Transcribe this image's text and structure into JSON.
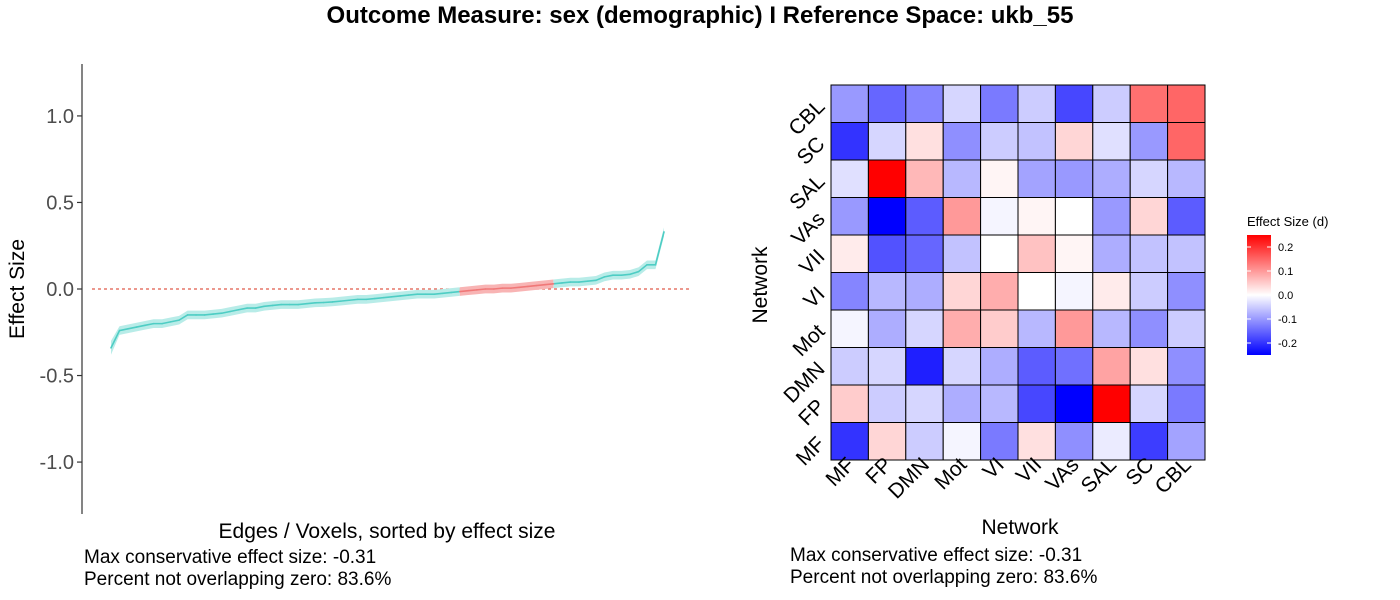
{
  "title": "Outcome Measure: sex (demographic)   I  Reference Space: ukb_55",
  "colors": {
    "series": "#4ecdc4",
    "ci_band": "#b8ece8",
    "ci_band_overlap": "#f8b4b4",
    "overlap_line": "#f07878",
    "zero_line": "#e05a4a",
    "high": "#ff0000",
    "mid": "#ffffff",
    "low": "#0000ff"
  },
  "chart_data": [
    {
      "type": "line",
      "xlabel": "Edges / Voxels, sorted by effect size",
      "ylabel": "Effect Size",
      "ylim": [
        -1.3,
        1.3
      ],
      "yticks": [
        -1.0,
        -0.5,
        0.0,
        0.5,
        1.0
      ],
      "ytick_labels": [
        "-1.0",
        "-0.5",
        "0.0",
        "0.5",
        "1.0"
      ],
      "zero_line": true,
      "grid": false,
      "ci_halfwidth": 0.025,
      "series": [
        {
          "values": [
            -0.34,
            -0.24,
            -0.23,
            -0.22,
            -0.21,
            -0.2,
            -0.2,
            -0.19,
            -0.18,
            -0.15,
            -0.15,
            -0.15,
            -0.145,
            -0.14,
            -0.13,
            -0.12,
            -0.11,
            -0.11,
            -0.1,
            -0.095,
            -0.09,
            -0.09,
            -0.09,
            -0.085,
            -0.08,
            -0.078,
            -0.075,
            -0.07,
            -0.065,
            -0.06,
            -0.06,
            -0.055,
            -0.05,
            -0.045,
            -0.04,
            -0.035,
            -0.03,
            -0.03,
            -0.03,
            -0.025,
            -0.02,
            -0.015,
            -0.01,
            -0.005,
            0.0,
            0.0,
            0.005,
            0.005,
            0.01,
            0.015,
            0.02,
            0.025,
            0.03,
            0.035,
            0.04,
            0.04,
            0.045,
            0.05,
            0.07,
            0.08,
            0.08,
            0.085,
            0.1,
            0.14,
            0.14,
            0.33
          ]
        }
      ],
      "overlap_zero_range": [
        41,
        52
      ],
      "annotations": [
        "Max conservative effect size: -0.31",
        "Percent not overlapping zero: 83.6%"
      ]
    },
    {
      "type": "heatmap",
      "xlabel": "Network",
      "ylabel": "Network",
      "x_labels": [
        "MF",
        "FP",
        "DMN",
        "Mot",
        "VI",
        "VII",
        "VAs",
        "SAL",
        "SC",
        "CBL"
      ],
      "y_labels": [
        "MF",
        "FP",
        "DMN",
        "Mot",
        "VI",
        "VII",
        "VAs",
        "SAL",
        "SC",
        "CBL"
      ],
      "values_top_to_bottom": [
        [
          -0.1,
          -0.15,
          -0.12,
          -0.04,
          -0.13,
          -0.05,
          -0.18,
          -0.05,
          0.14,
          0.15
        ],
        [
          -0.2,
          -0.04,
          0.03,
          -0.11,
          -0.05,
          -0.06,
          0.04,
          -0.03,
          -0.1,
          0.15
        ],
        [
          -0.03,
          0.26,
          0.07,
          -0.07,
          0.01,
          -0.09,
          -0.1,
          -0.08,
          -0.04,
          -0.07
        ],
        [
          -0.1,
          -0.26,
          -0.16,
          0.1,
          -0.01,
          0.01,
          0.0,
          -0.1,
          0.04,
          -0.16
        ],
        [
          0.02,
          -0.17,
          -0.15,
          -0.06,
          0.0,
          0.06,
          0.01,
          -0.08,
          -0.06,
          -0.06
        ],
        [
          -0.12,
          -0.07,
          -0.08,
          0.04,
          0.08,
          0.0,
          -0.01,
          0.02,
          -0.05,
          -0.11
        ],
        [
          -0.01,
          -0.08,
          -0.04,
          0.08,
          0.05,
          -0.07,
          0.1,
          -0.07,
          -0.11,
          -0.05
        ],
        [
          -0.05,
          -0.04,
          -0.22,
          -0.04,
          -0.08,
          -0.16,
          -0.14,
          0.09,
          0.03,
          -0.11
        ],
        [
          0.05,
          -0.05,
          -0.04,
          -0.08,
          -0.07,
          -0.18,
          -0.26,
          0.27,
          -0.04,
          -0.13
        ],
        [
          -0.2,
          0.04,
          -0.05,
          -0.01,
          -0.13,
          0.03,
          -0.11,
          -0.02,
          -0.19,
          -0.09
        ]
      ],
      "legend": {
        "title": "Effect Size (d)",
        "position": "right",
        "ticks": [
          0.2,
          0.1,
          0.0,
          -0.1,
          -0.2
        ],
        "tick_labels": [
          "0.2",
          "0.1",
          "0.0",
          "-0.1",
          "-0.2"
        ],
        "range": [
          -0.25,
          0.25
        ]
      },
      "annotations": [
        "Max conservative effect size: -0.31",
        "Percent not overlapping zero: 83.6%"
      ]
    }
  ]
}
